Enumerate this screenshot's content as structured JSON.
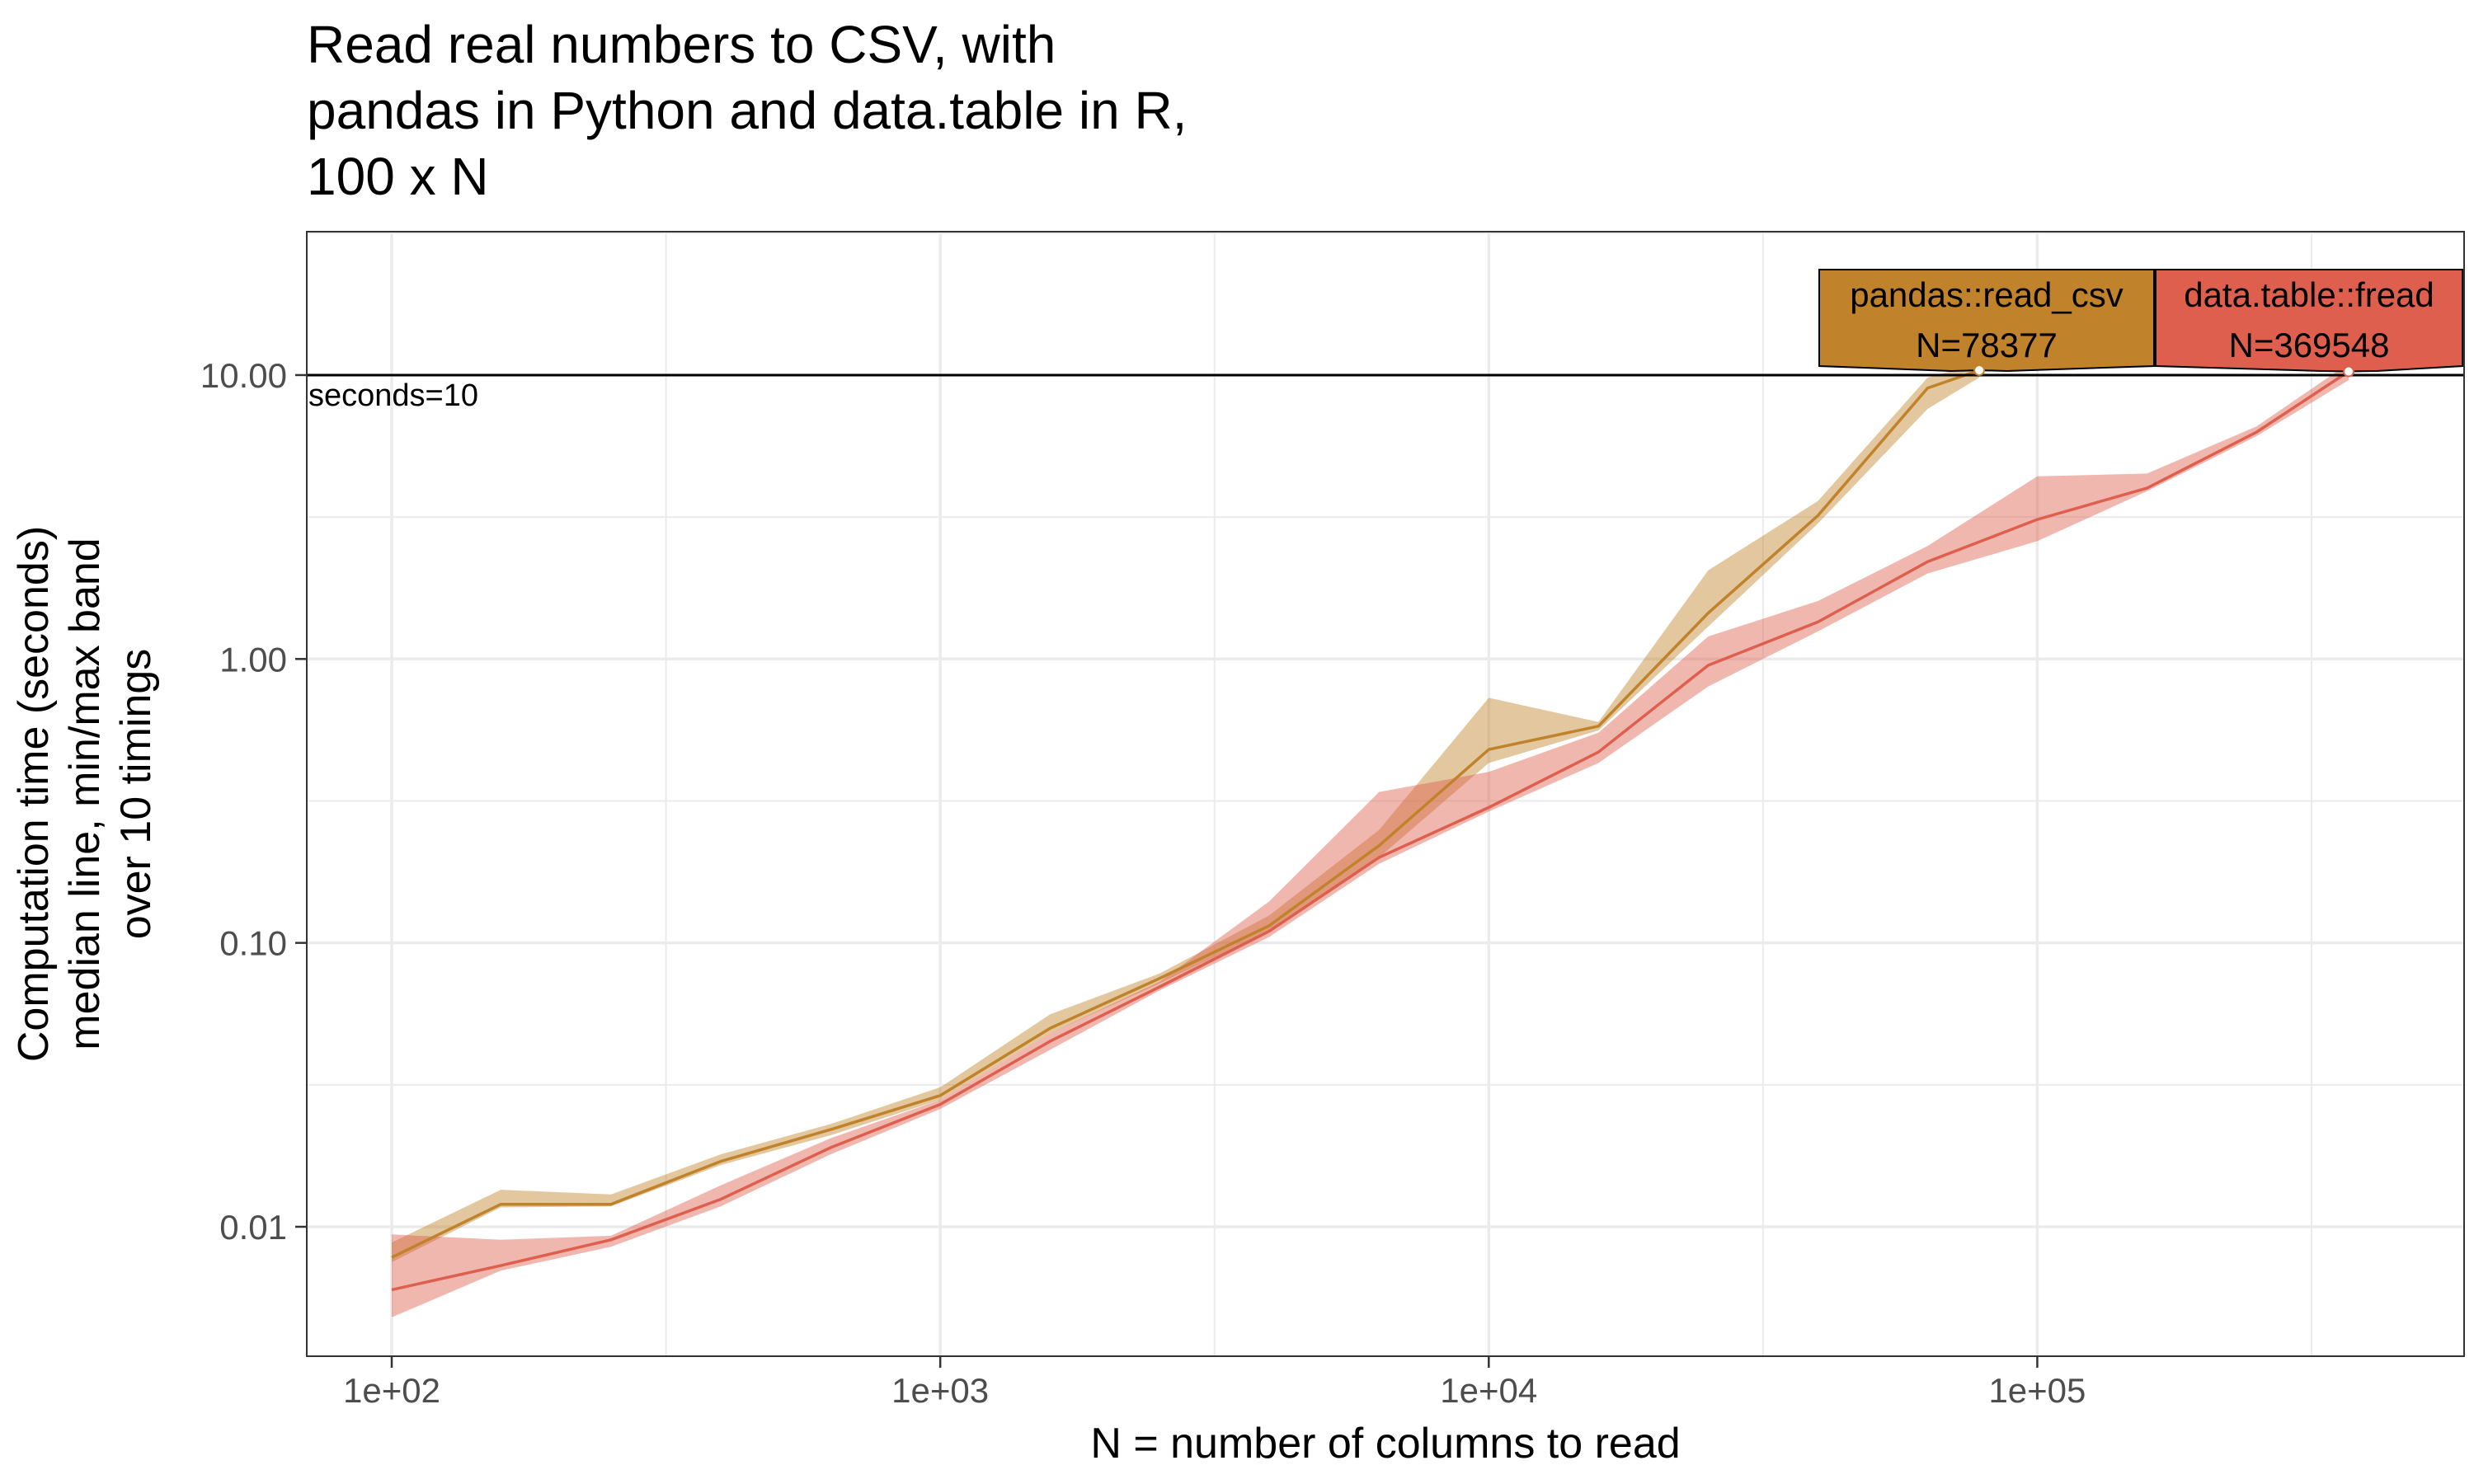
{
  "chart_data": {
    "type": "line",
    "title_lines": [
      "Read real numbers to CSV, with",
      "pandas in Python and data.table in R,",
      "100 x N"
    ],
    "xlabel": "N = number of columns to read",
    "ylabel_lines": [
      "Computation time (seconds)",
      "median line, min/max band",
      "over 10 timings"
    ],
    "x_scale": "log10",
    "y_scale": "log10",
    "xlim": [
      70,
      600000
    ],
    "ylim": [
      0.0035,
      32
    ],
    "x_ticks": [
      100,
      1000,
      10000,
      100000
    ],
    "x_tick_labels": [
      "1e+02",
      "1e+03",
      "1e+04",
      "1e+05"
    ],
    "y_ticks": [
      0.01,
      0.1,
      1,
      10
    ],
    "y_tick_labels": [
      "0.01",
      "0.10",
      "1.00",
      "10.00"
    ],
    "grid": true,
    "reference_line": {
      "y": 10,
      "label": "seconds=10"
    },
    "series": [
      {
        "name": "pandas::read_csv",
        "color": "#C0822A",
        "points": [
          {
            "x": 100,
            "median": 0.0078,
            "min": 0.0075,
            "max": 0.0088
          },
          {
            "x": 158,
            "median": 0.012,
            "min": 0.0117,
            "max": 0.0135
          },
          {
            "x": 251,
            "median": 0.012,
            "min": 0.0118,
            "max": 0.013
          },
          {
            "x": 398,
            "median": 0.017,
            "min": 0.0165,
            "max": 0.018
          },
          {
            "x": 631,
            "median": 0.022,
            "min": 0.021,
            "max": 0.023
          },
          {
            "x": 1000,
            "median": 0.029,
            "min": 0.028,
            "max": 0.031
          },
          {
            "x": 1585,
            "median": 0.05,
            "min": 0.048,
            "max": 0.056
          },
          {
            "x": 2512,
            "median": 0.075,
            "min": 0.072,
            "max": 0.078
          },
          {
            "x": 3981,
            "median": 0.115,
            "min": 0.11,
            "max": 0.125
          },
          {
            "x": 6310,
            "median": 0.22,
            "min": 0.2,
            "max": 0.25
          },
          {
            "x": 10000,
            "median": 0.48,
            "min": 0.43,
            "max": 0.73
          },
          {
            "x": 15849,
            "median": 0.58,
            "min": 0.56,
            "max": 0.6
          },
          {
            "x": 25119,
            "median": 1.45,
            "min": 1.3,
            "max": 2.05
          },
          {
            "x": 39811,
            "median": 3.2,
            "min": 3.0,
            "max": 3.6
          },
          {
            "x": 63096,
            "median": 9.0,
            "min": 7.6,
            "max": 9.8
          },
          {
            "x": 78377,
            "median": 10.4,
            "min": 9.8,
            "max": 11.0
          }
        ],
        "label": {
          "text": "pandas::read_csv",
          "sub": "N=78377",
          "x": 78377,
          "y": 10.4
        }
      },
      {
        "name": "data.table::fread",
        "color": "#DE5F4D",
        "points": [
          {
            "x": 100,
            "median": 0.006,
            "min": 0.0048,
            "max": 0.0094
          },
          {
            "x": 158,
            "median": 0.0073,
            "min": 0.007,
            "max": 0.009
          },
          {
            "x": 251,
            "median": 0.009,
            "min": 0.0085,
            "max": 0.0093
          },
          {
            "x": 398,
            "median": 0.0125,
            "min": 0.0118,
            "max": 0.014
          },
          {
            "x": 631,
            "median": 0.019,
            "min": 0.018,
            "max": 0.0205
          },
          {
            "x": 1000,
            "median": 0.027,
            "min": 0.026,
            "max": 0.028
          },
          {
            "x": 1585,
            "median": 0.045,
            "min": 0.042,
            "max": 0.048
          },
          {
            "x": 2512,
            "median": 0.07,
            "min": 0.068,
            "max": 0.073
          },
          {
            "x": 3981,
            "median": 0.11,
            "min": 0.105,
            "max": 0.14
          },
          {
            "x": 6310,
            "median": 0.2,
            "min": 0.19,
            "max": 0.34
          },
          {
            "x": 10000,
            "median": 0.3,
            "min": 0.29,
            "max": 0.4
          },
          {
            "x": 15849,
            "median": 0.47,
            "min": 0.43,
            "max": 0.55
          },
          {
            "x": 25119,
            "median": 0.95,
            "min": 0.8,
            "max": 1.2
          },
          {
            "x": 39811,
            "median": 1.35,
            "min": 1.25,
            "max": 1.6
          },
          {
            "x": 63096,
            "median": 2.2,
            "min": 2.0,
            "max": 2.5
          },
          {
            "x": 100000,
            "median": 3.1,
            "min": 2.6,
            "max": 4.4
          },
          {
            "x": 158489,
            "median": 4.0,
            "min": 3.9,
            "max": 4.5
          },
          {
            "x": 251189,
            "median": 6.3,
            "min": 6.1,
            "max": 6.6
          },
          {
            "x": 369548,
            "median": 10.3,
            "min": 9.6,
            "max": 11.0
          }
        ],
        "label": {
          "text": "data.table::fread",
          "sub": "N=369548",
          "x": 369548,
          "y": 10.3
        }
      }
    ]
  }
}
